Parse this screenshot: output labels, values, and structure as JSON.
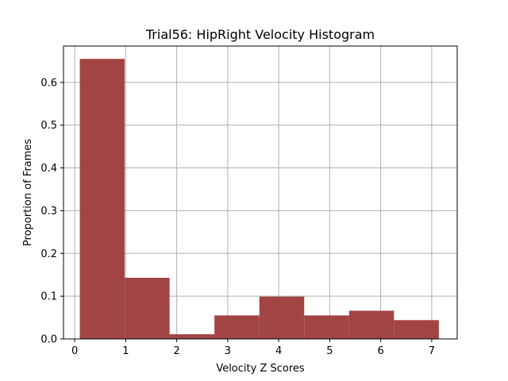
{
  "chart_data": {
    "type": "bar",
    "title": "Trial56: HipRight Velocity Histogram",
    "xlabel": "Velocity Z Scores",
    "ylabel": "Proportion of Frames",
    "xlim": [
      -0.22,
      7.5
    ],
    "ylim": [
      0,
      0.685
    ],
    "xticks": [
      0,
      1,
      2,
      3,
      4,
      5,
      6,
      7
    ],
    "yticks": [
      0.0,
      0.1,
      0.2,
      0.3,
      0.4,
      0.5,
      0.6
    ],
    "grid": true,
    "bar_color": "#a04040",
    "bins": [
      {
        "x0": 0.1,
        "x1": 0.98,
        "value": 0.655
      },
      {
        "x0": 0.98,
        "x1": 1.86,
        "value": 0.143
      },
      {
        "x0": 1.86,
        "x1": 2.74,
        "value": 0.011
      },
      {
        "x0": 2.74,
        "x1": 3.62,
        "value": 0.055
      },
      {
        "x0": 3.62,
        "x1": 4.5,
        "value": 0.099
      },
      {
        "x0": 4.5,
        "x1": 5.38,
        "value": 0.055
      },
      {
        "x0": 5.38,
        "x1": 6.26,
        "value": 0.066
      },
      {
        "x0": 6.26,
        "x1": 7.14,
        "value": 0.044
      }
    ]
  }
}
